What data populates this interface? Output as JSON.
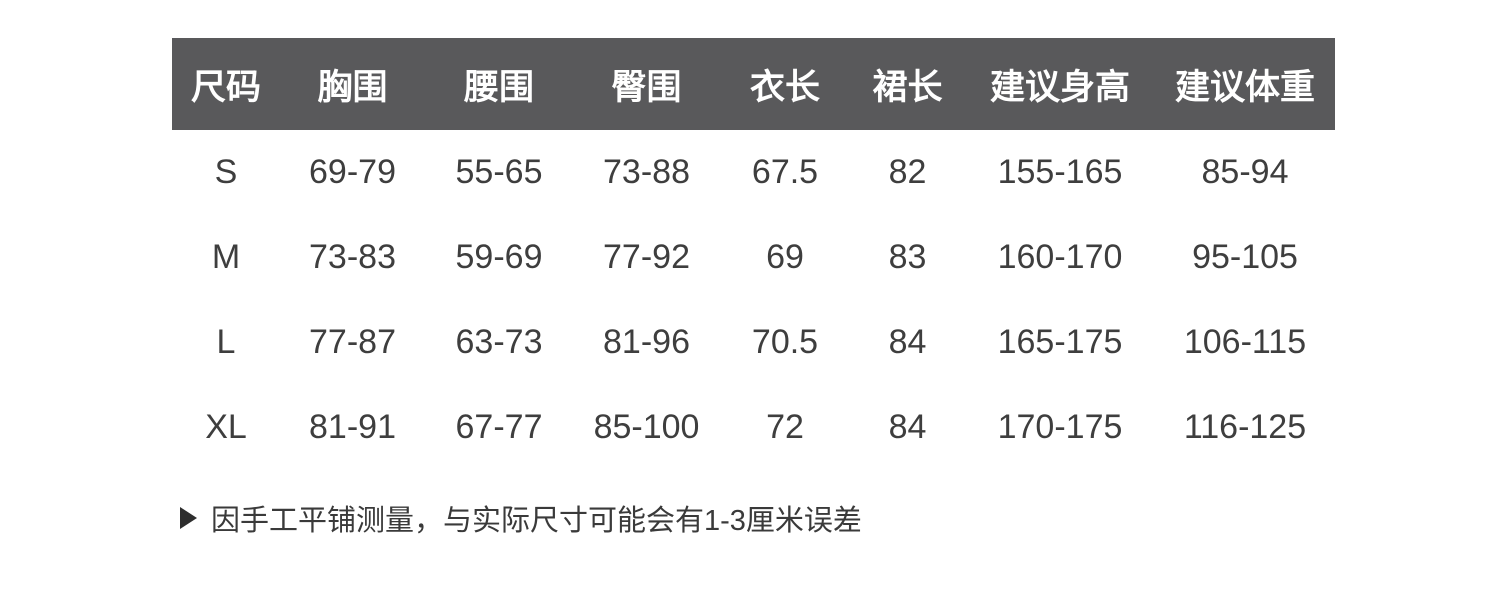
{
  "page": {
    "background_color": "#ffffff"
  },
  "table": {
    "colors": {
      "header_bg": "#59595b",
      "header_text": "#ffffff",
      "body_text": "#3e3e3e"
    },
    "columns": [
      "尺码",
      "胸围",
      "腰围",
      "臀围",
      "衣长",
      "裙长",
      "建议身高",
      "建议体重"
    ],
    "rows": [
      [
        "S",
        "69-79",
        "55-65",
        "73-88",
        "67.5",
        "82",
        "155-165",
        "85-94"
      ],
      [
        "M",
        "73-83",
        "59-69",
        "77-92",
        "69",
        "83",
        "160-170",
        "95-105"
      ],
      [
        "L",
        "77-87",
        "63-73",
        "81-96",
        "70.5",
        "84",
        "165-175",
        "106-115"
      ],
      [
        "XL",
        "81-91",
        "67-77",
        "85-100",
        "72",
        "84",
        "170-175",
        "116-125"
      ]
    ]
  },
  "note": {
    "icon": "play-triangle-icon",
    "text": "因手工平铺测量，与实际尺寸可能会有1-3厘米误差"
  }
}
